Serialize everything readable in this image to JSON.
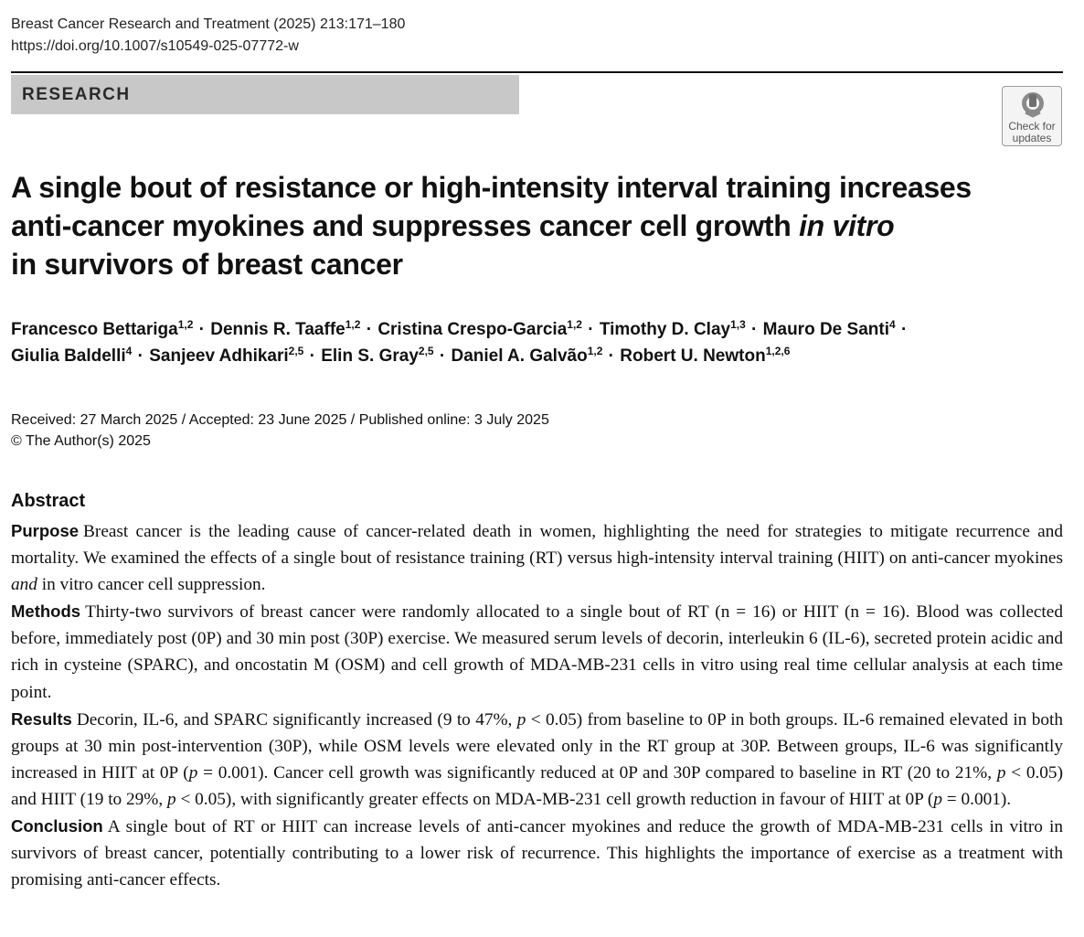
{
  "header": {
    "journal": "Breast Cancer Research and Treatment (2025) 213:171–180",
    "doi": "https://doi.org/10.1007/s10549-025-07772-w",
    "section": "RESEARCH",
    "check_updates": {
      "line1": "Check for",
      "line2": "updates"
    }
  },
  "title": {
    "line1": "A single bout of resistance or high-intensity interval training increases",
    "line2_pre": "anti-cancer myokines and suppresses cancer cell growth ",
    "line2_em": "in vitro",
    "line3": "in survivors of breast cancer"
  },
  "authors": {
    "separator": "·",
    "line1": [
      {
        "name": "Francesco Bettariga",
        "aff": "1,2"
      },
      {
        "name": "Dennis R. Taaffe",
        "aff": "1,2"
      },
      {
        "name": "Cristina Crespo-Garcia",
        "aff": "1,2"
      },
      {
        "name": "Timothy D. Clay",
        "aff": "1,3"
      },
      {
        "name": "Mauro De Santi",
        "aff": "4"
      }
    ],
    "line2": [
      {
        "name": "Giulia Baldelli",
        "aff": "4"
      },
      {
        "name": "Sanjeev Adhikari",
        "aff": "2,5"
      },
      {
        "name": "Elin S. Gray",
        "aff": "2,5"
      },
      {
        "name": "Daniel A. Galvão",
        "aff": "1,2"
      },
      {
        "name": "Robert U. Newton",
        "aff": "1,2,6"
      }
    ]
  },
  "dates": {
    "received": "Received: 27 March 2025 / Accepted: 23 June 2025 / Published online: 3 July 2025",
    "copyright": "© The Author(s) 2025"
  },
  "abstract": {
    "heading": "Abstract",
    "purpose_label": "Purpose",
    "purpose_a": "Breast cancer is the leading cause of cancer-related death in women, highlighting the need for strategies to mitigate recurrence and mortality. We examined the effects of a single bout of resistance training (RT) versus high-intensity interval training (HIIT) on anti-cancer myokines ",
    "purpose_em": "and",
    "purpose_b": " in vitro cancer cell suppression.",
    "methods_label": "Methods",
    "methods_text": "Thirty-two survivors of breast cancer were randomly allocated to a single bout of RT (n = 16) or HIIT (n = 16). Blood was collected before, immediately post (0P) and 30 min post (30P) exercise. We measured serum levels of decorin, interleukin 6 (IL-6), secreted protein acidic and rich in cysteine (SPARC), and oncostatin M (OSM) and cell growth of MDA-MB-231 cells in vitro using real time cellular analysis at each time point.",
    "results_label": "Results",
    "results_1": "Decorin, IL-6, and SPARC significantly increased (9 to 47%, ",
    "results_p1": "p",
    "results_2": " < 0.05) from baseline to 0P in both groups. IL-6 remained elevated in both groups at 30 min post-intervention (30P), while OSM levels were elevated only in the RT group at 30P. Between groups, IL-6 was significantly increased in HIIT at 0P (",
    "results_p2": "p",
    "results_3": " = 0.001). Cancer cell growth was significantly reduced at 0P and 30P compared to baseline in RT (20 to 21%, ",
    "results_p3": "p",
    "results_4": " < 0.05) and HIIT (19 to 29%, ",
    "results_p4": "p",
    "results_5": " < 0.05), with significantly greater effects on MDA-MB-231 cell growth reduction in favour of HIIT at 0P (",
    "results_p5": "p",
    "results_6": " = 0.001).",
    "conclusion_label": "Conclusion",
    "conclusion_text": "A single bout of RT or HIIT can increase levels of anti-cancer myokines and reduce the growth of MDA-MB-231 cells in vitro in survivors of breast cancer, potentially contributing to a lower risk of recurrence. This highlights the importance of exercise as a treatment with promising anti-cancer effects."
  }
}
